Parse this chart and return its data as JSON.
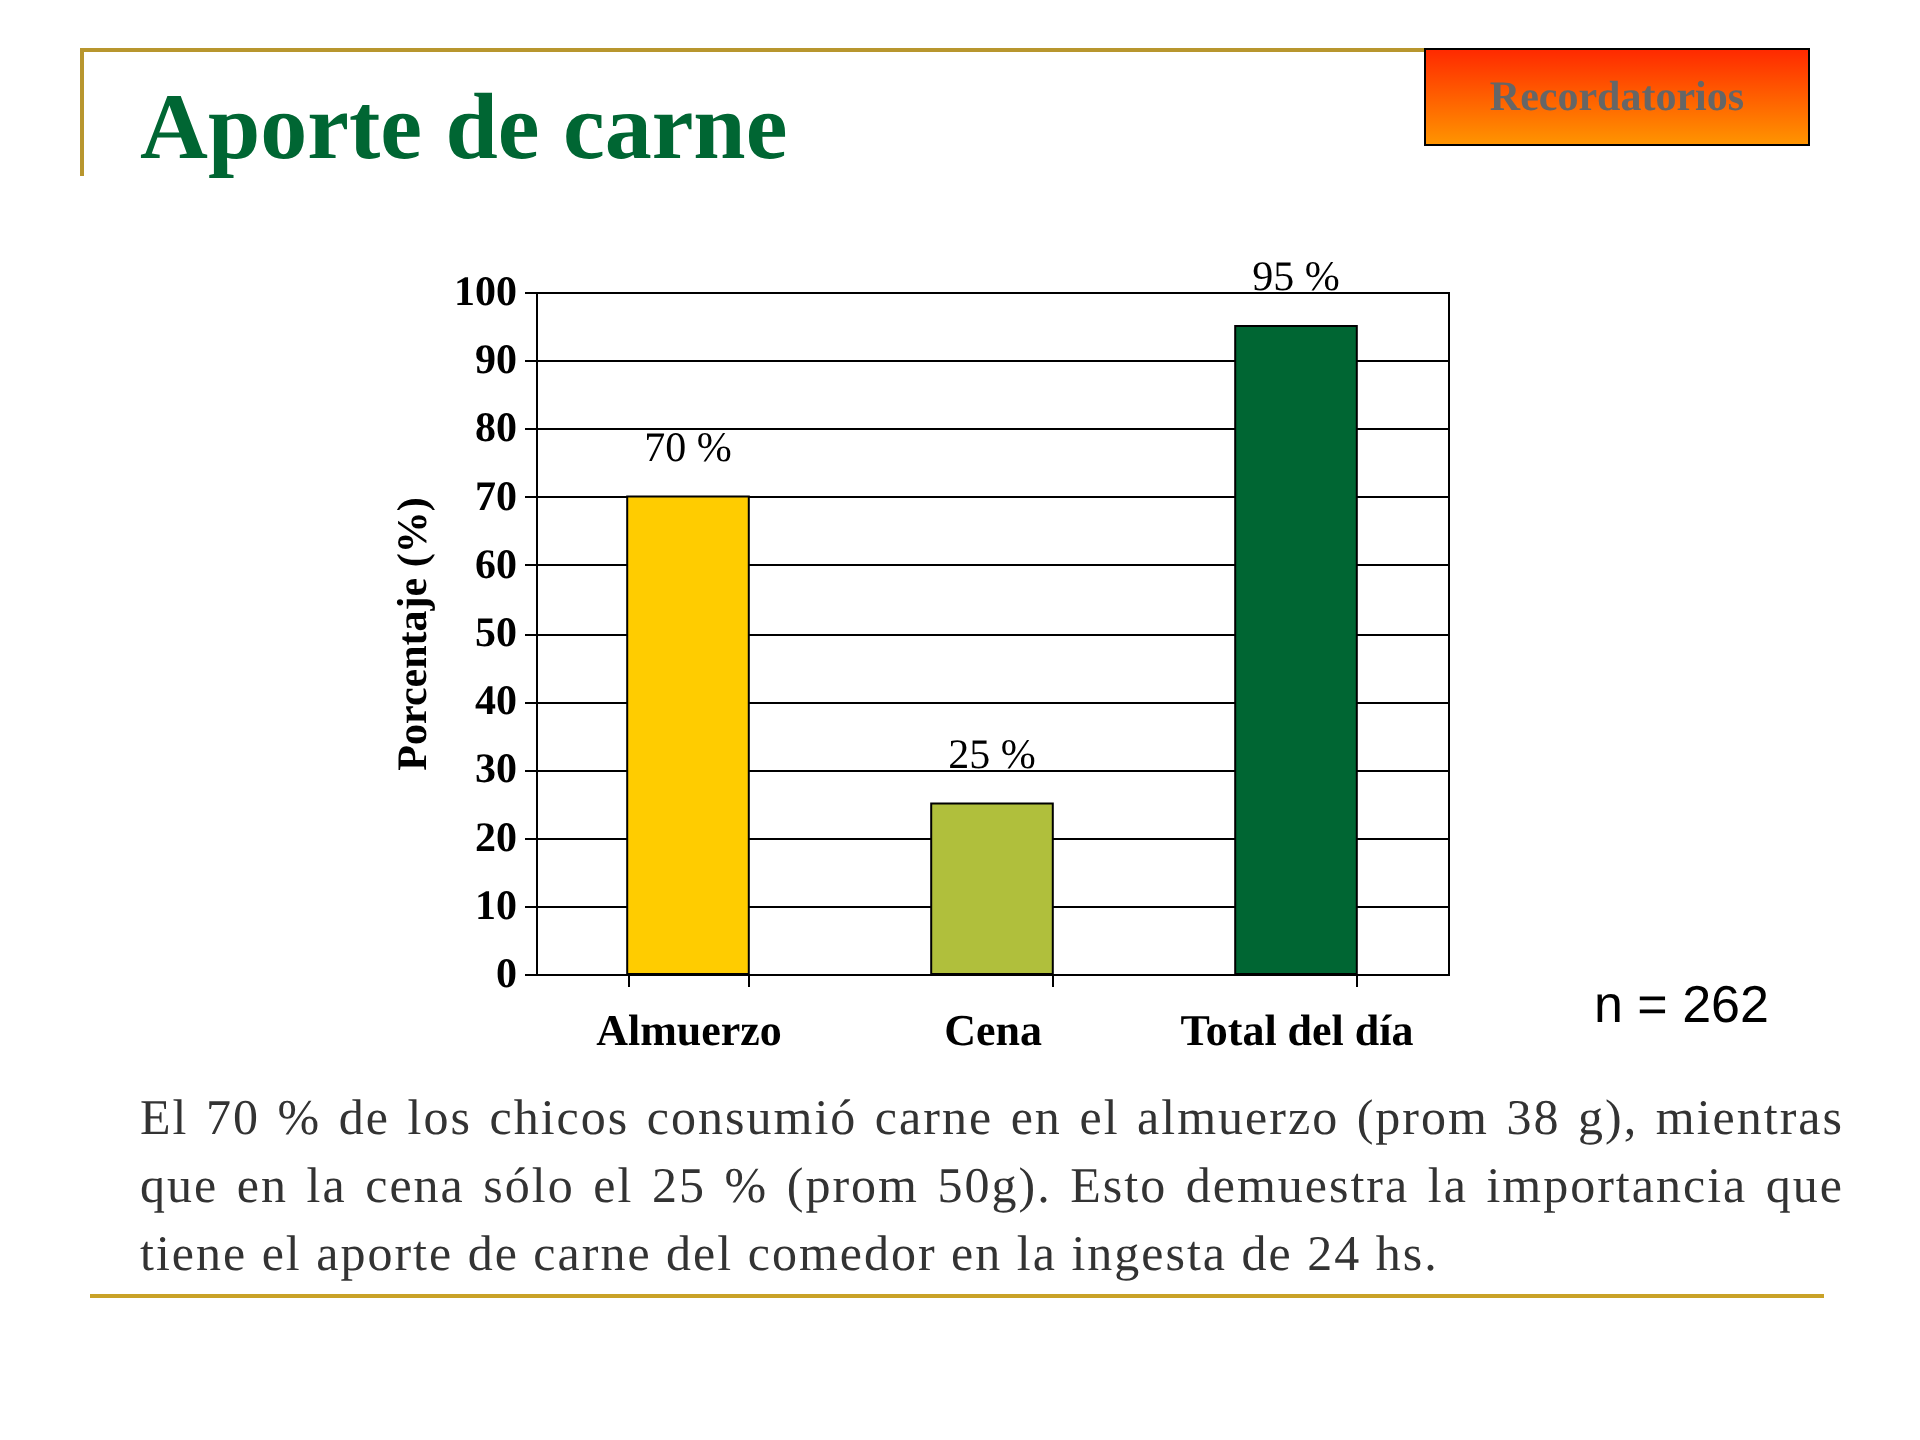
{
  "chart_data": {
    "type": "bar",
    "title": "Aporte de carne",
    "ylabel": "Porcentaje (%)",
    "categories": [
      "Almuerzo",
      "Cena",
      "Total del día"
    ],
    "values": [
      70,
      25,
      95
    ],
    "colors": [
      "#ffcc00",
      "#b0bf3c",
      "#006633"
    ],
    "value_labels": [
      "70 %",
      "25 %",
      "95 %"
    ],
    "ylim": [
      0,
      100
    ],
    "yticks": [
      0,
      10,
      20,
      30,
      40,
      50,
      60,
      70,
      80,
      90,
      100
    ],
    "grid": "y",
    "annotations": [
      "Recordatorios",
      "n = 262",
      "El 70 % de los chicos consumió carne en el almuerzo (prom 38 g), mientras que en la cena sólo el 25 % (prom 50g). Esto demuestra la importancia que tiene el aporte de carne del comedor en la ingesta de 24 hs."
    ]
  }
}
